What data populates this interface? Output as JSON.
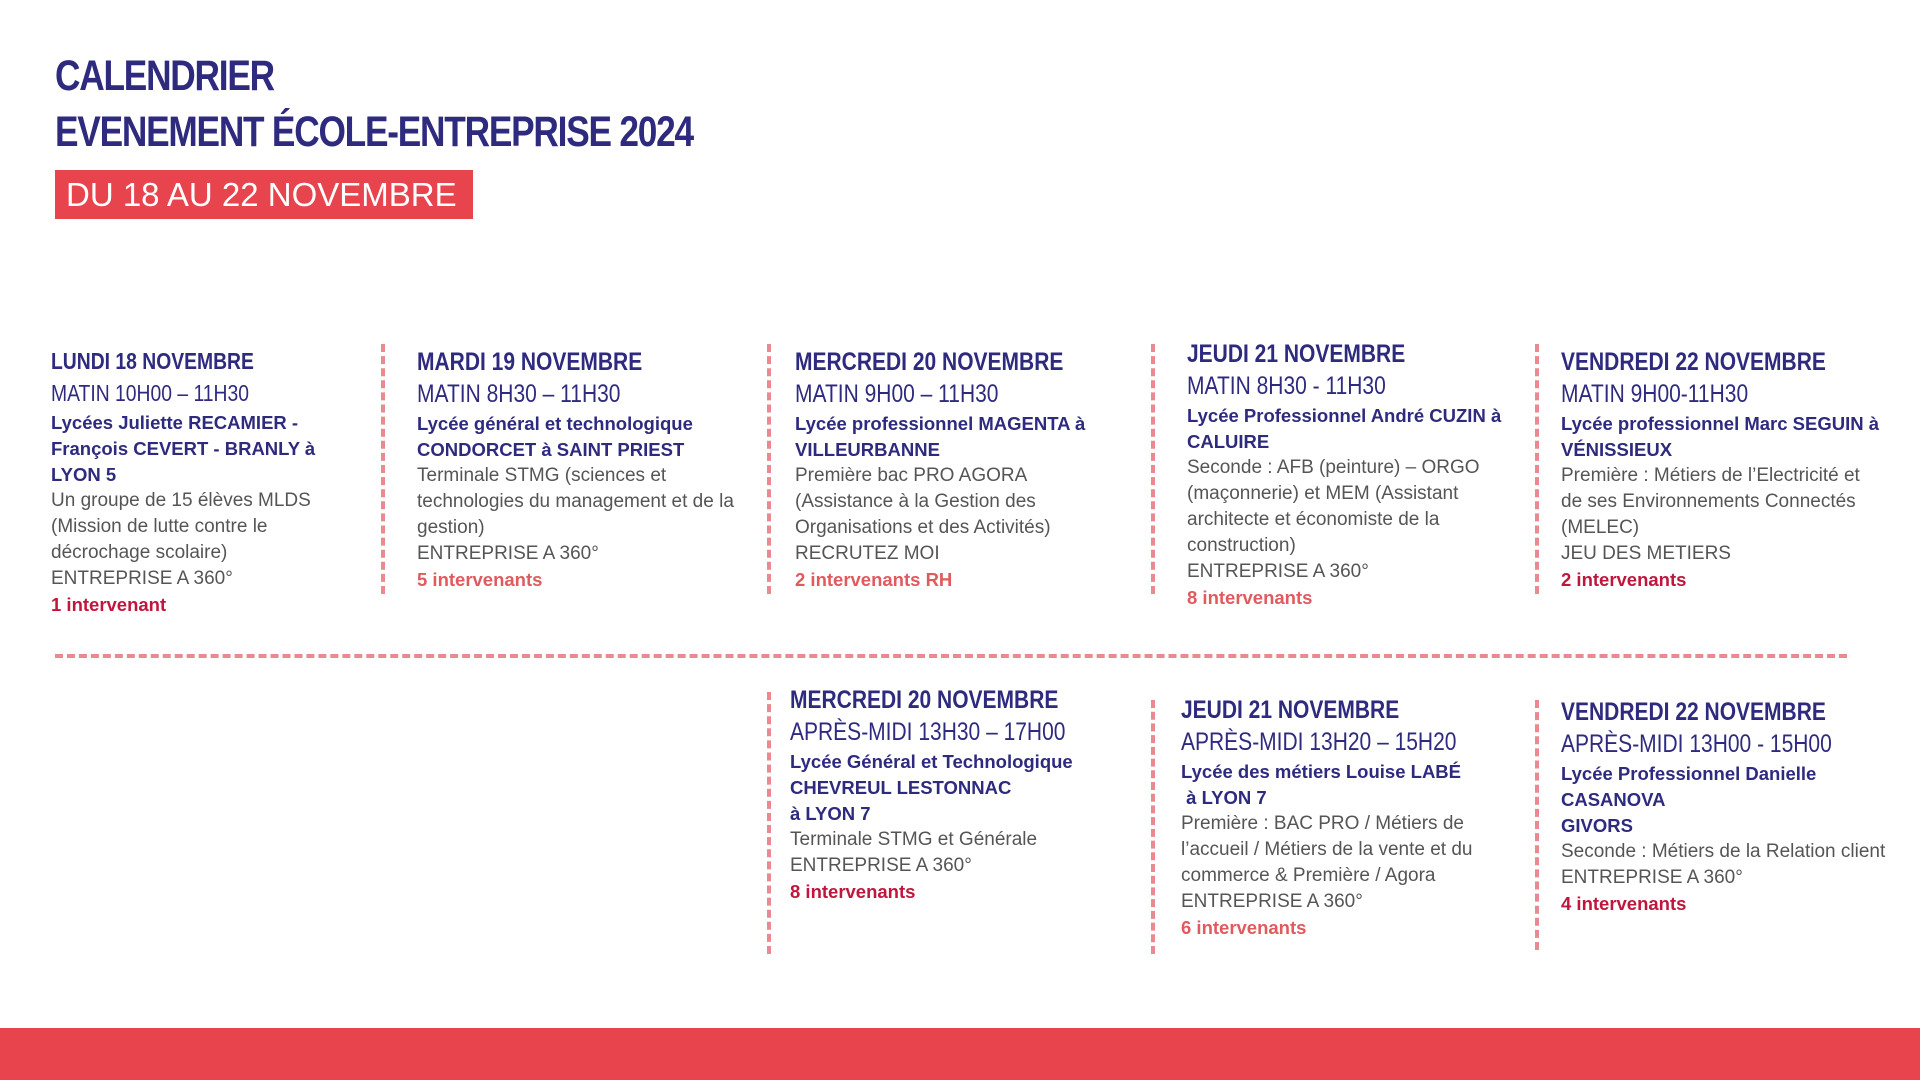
{
  "header": {
    "title_line1": "CALENDRIER",
    "title_line2": "EVENEMENT ÉCOLE-ENTREPRISE 2024",
    "subtitle": "DU 18 AU 22 NOVEMBRE"
  },
  "colors": {
    "navy": "#2e2a7e",
    "red": "#e8444d",
    "dashed_line": "#e88a8f",
    "count_dark": "#c0163d",
    "count_light": "#e05a5e"
  },
  "events": [
    {
      "day": "LUNDI 18 NOVEMBRE",
      "time": "MATIN 10H00 – 11H30",
      "school": "Lycées Juliette RECAMIER - François CEVERT - BRANLY à LYON 5",
      "description": "Un groupe de 15 élèves MLDS (Mission de lutte contre le décrochage scolaire)",
      "activity": "ENTREPRISE A 360°",
      "count": "1 intervenant"
    },
    {
      "day": "MARDI 19 NOVEMBRE",
      "time": "MATIN 8H30 – 11H30",
      "school": "Lycée général et technologique CONDORCET à SAINT PRIEST",
      "description": "Terminale STMG (sciences et technologies du management et de la gestion)",
      "activity": "ENTREPRISE A 360°",
      "count": "5 intervenants"
    },
    {
      "day": "MERCREDI 20 NOVEMBRE",
      "time": "MATIN 9H00 – 11H30",
      "school": "Lycée professionnel MAGENTA  à VILLEURBANNE",
      "description": "Première bac PRO AGORA (Assistance à la Gestion des Organisations et des Activités)",
      "activity": "RECRUTEZ MOI",
      "count": "2 intervenants RH"
    },
    {
      "day": "JEUDI 21 NOVEMBRE",
      "time": "MATIN 8H30 - 11H30",
      "school": "Lycée Professionnel André CUZIN à CALUIRE",
      "description": "Seconde : AFB (peinture) – ORGO (maçonnerie) et MEM (Assistant architecte et économiste de la construction)",
      "activity": "ENTREPRISE A 360°",
      "count": "8 intervenants"
    },
    {
      "day": "VENDREDI 22 NOVEMBRE",
      "time": "MATIN 9H00-11H30",
      "school": "Lycée professionnel Marc SEGUIN à VÉNISSIEUX",
      "description": "Première : Métiers de l’Electricité et de ses Environnements Connectés (MELEC)",
      "activity": "JEU DES METIERS",
      "count": "2 intervenants"
    },
    {
      "day": "MERCREDI 20 NOVEMBRE",
      "time": "APRÈS-MIDI 13H30 – 17H00",
      "school": "Lycée Général et Technologique CHEVREUL LESTONNAC",
      "school_line2": "à LYON 7",
      "description": "Terminale STMG et Générale",
      "activity": "ENTREPRISE A 360°",
      "count": "8 intervenants"
    },
    {
      "day": "JEUDI 21 NOVEMBRE",
      "time": "APRÈS-MIDI 13H20 – 15H20",
      "school": "Lycée des métiers Louise LABÉ",
      "school_line2": " à LYON 7",
      "description": "Première : BAC PRO / Métiers de l’accueil /  Métiers de la vente et du commerce & Première / Agora",
      "activity": "ENTREPRISE A 360°",
      "count": "6 intervenants"
    },
    {
      "day": "VENDREDI 22 NOVEMBRE",
      "time": "APRÈS-MIDI 13H00 - 15H00",
      "school": "Lycée Professionnel Danielle CASANOVA",
      "school_line2": "GIVORS",
      "description": "Seconde : Métiers de la Relation client",
      "activity": "ENTREPRISE A 360°",
      "count": "4 intervenants"
    }
  ]
}
